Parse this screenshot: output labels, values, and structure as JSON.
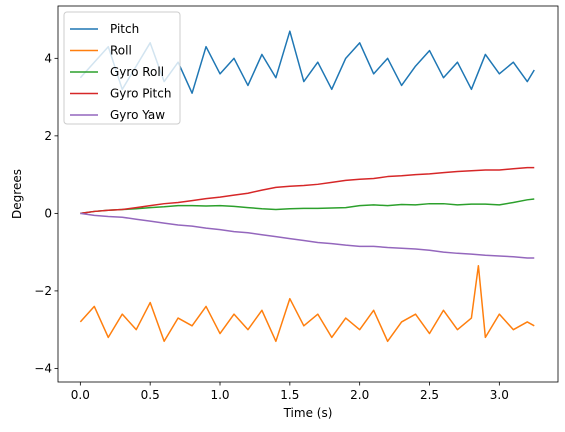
{
  "chart_data": {
    "type": "line",
    "title": "",
    "xlabel": "Time (s)",
    "ylabel": "Degrees",
    "xlim": [
      -0.16,
      3.42
    ],
    "ylim": [
      -4.35,
      5.35
    ],
    "xticks": [
      0.0,
      0.5,
      1.0,
      1.5,
      2.0,
      2.5,
      3.0
    ],
    "xtick_labels": [
      "0.0",
      "0.5",
      "1.0",
      "1.5",
      "2.0",
      "2.5",
      "3.0"
    ],
    "yticks": [
      -4,
      -2,
      0,
      2,
      4
    ],
    "ytick_labels": [
      "−4",
      "−2",
      "0",
      "2",
      "4"
    ],
    "grid": false,
    "legend_position": "top-left",
    "series": [
      {
        "name": "Pitch",
        "color": "#1f77b4",
        "x": [
          0.0,
          0.1,
          0.2,
          0.3,
          0.4,
          0.5,
          0.6,
          0.7,
          0.8,
          0.9,
          1.0,
          1.1,
          1.2,
          1.3,
          1.4,
          1.5,
          1.6,
          1.7,
          1.8,
          1.9,
          2.0,
          2.1,
          2.2,
          2.3,
          2.4,
          2.5,
          2.6,
          2.7,
          2.8,
          2.9,
          3.0,
          3.1,
          3.2,
          3.25
        ],
        "y": [
          3.5,
          3.9,
          4.3,
          3.2,
          3.8,
          4.4,
          3.4,
          3.9,
          3.1,
          4.3,
          3.6,
          4.0,
          3.3,
          4.1,
          3.5,
          4.7,
          3.4,
          3.9,
          3.2,
          4.0,
          4.4,
          3.6,
          4.0,
          3.3,
          3.8,
          4.2,
          3.5,
          3.9,
          3.2,
          4.1,
          3.6,
          3.9,
          3.4,
          3.7
        ]
      },
      {
        "name": "Roll",
        "color": "#ff7f0e",
        "x": [
          0.0,
          0.1,
          0.2,
          0.3,
          0.4,
          0.5,
          0.6,
          0.7,
          0.8,
          0.9,
          1.0,
          1.1,
          1.2,
          1.3,
          1.4,
          1.5,
          1.6,
          1.7,
          1.8,
          1.9,
          2.0,
          2.1,
          2.2,
          2.3,
          2.4,
          2.5,
          2.6,
          2.7,
          2.8,
          2.85,
          2.9,
          3.0,
          3.1,
          3.2,
          3.25
        ],
        "y": [
          -2.8,
          -2.4,
          -3.2,
          -2.6,
          -3.0,
          -2.3,
          -3.3,
          -2.7,
          -2.9,
          -2.4,
          -3.1,
          -2.6,
          -3.0,
          -2.5,
          -3.3,
          -2.2,
          -2.9,
          -2.6,
          -3.2,
          -2.7,
          -3.0,
          -2.5,
          -3.3,
          -2.8,
          -2.6,
          -3.1,
          -2.5,
          -3.0,
          -2.7,
          -1.35,
          -3.2,
          -2.6,
          -3.0,
          -2.8,
          -2.9
        ]
      },
      {
        "name": "Gyro Roll",
        "color": "#2ca02c",
        "x": [
          0.0,
          0.1,
          0.2,
          0.3,
          0.4,
          0.5,
          0.6,
          0.7,
          0.8,
          0.9,
          1.0,
          1.1,
          1.2,
          1.3,
          1.4,
          1.5,
          1.6,
          1.7,
          1.8,
          1.9,
          2.0,
          2.1,
          2.2,
          2.3,
          2.4,
          2.5,
          2.6,
          2.7,
          2.8,
          2.9,
          3.0,
          3.1,
          3.2,
          3.25
        ],
        "y": [
          0.0,
          0.05,
          0.08,
          0.1,
          0.12,
          0.15,
          0.17,
          0.2,
          0.2,
          0.19,
          0.2,
          0.18,
          0.15,
          0.12,
          0.1,
          0.12,
          0.13,
          0.13,
          0.14,
          0.15,
          0.2,
          0.22,
          0.2,
          0.23,
          0.22,
          0.25,
          0.25,
          0.22,
          0.24,
          0.24,
          0.22,
          0.28,
          0.35,
          0.37
        ]
      },
      {
        "name": "Gyro Pitch",
        "color": "#d62728",
        "x": [
          0.0,
          0.1,
          0.2,
          0.3,
          0.4,
          0.5,
          0.6,
          0.7,
          0.8,
          0.9,
          1.0,
          1.1,
          1.2,
          1.3,
          1.4,
          1.5,
          1.6,
          1.7,
          1.8,
          1.9,
          2.0,
          2.1,
          2.2,
          2.3,
          2.4,
          2.5,
          2.6,
          2.7,
          2.8,
          2.9,
          3.0,
          3.1,
          3.2,
          3.25
        ],
        "y": [
          0.0,
          0.05,
          0.08,
          0.1,
          0.15,
          0.2,
          0.25,
          0.28,
          0.33,
          0.38,
          0.42,
          0.47,
          0.52,
          0.6,
          0.67,
          0.7,
          0.72,
          0.75,
          0.8,
          0.85,
          0.88,
          0.9,
          0.95,
          0.97,
          1.0,
          1.02,
          1.05,
          1.08,
          1.1,
          1.12,
          1.12,
          1.15,
          1.18,
          1.18
        ]
      },
      {
        "name": "Gyro Yaw",
        "color": "#9467bd",
        "x": [
          0.0,
          0.1,
          0.2,
          0.3,
          0.4,
          0.5,
          0.6,
          0.7,
          0.8,
          0.9,
          1.0,
          1.1,
          1.2,
          1.3,
          1.4,
          1.5,
          1.6,
          1.7,
          1.8,
          1.9,
          2.0,
          2.1,
          2.2,
          2.3,
          2.4,
          2.5,
          2.6,
          2.7,
          2.8,
          2.9,
          3.0,
          3.1,
          3.2,
          3.25
        ],
        "y": [
          0.0,
          -0.05,
          -0.08,
          -0.1,
          -0.15,
          -0.2,
          -0.25,
          -0.3,
          -0.33,
          -0.38,
          -0.42,
          -0.47,
          -0.5,
          -0.55,
          -0.6,
          -0.65,
          -0.7,
          -0.75,
          -0.78,
          -0.82,
          -0.85,
          -0.85,
          -0.88,
          -0.9,
          -0.92,
          -0.95,
          -1.0,
          -1.03,
          -1.05,
          -1.08,
          -1.1,
          -1.12,
          -1.15,
          -1.15
        ]
      }
    ]
  }
}
